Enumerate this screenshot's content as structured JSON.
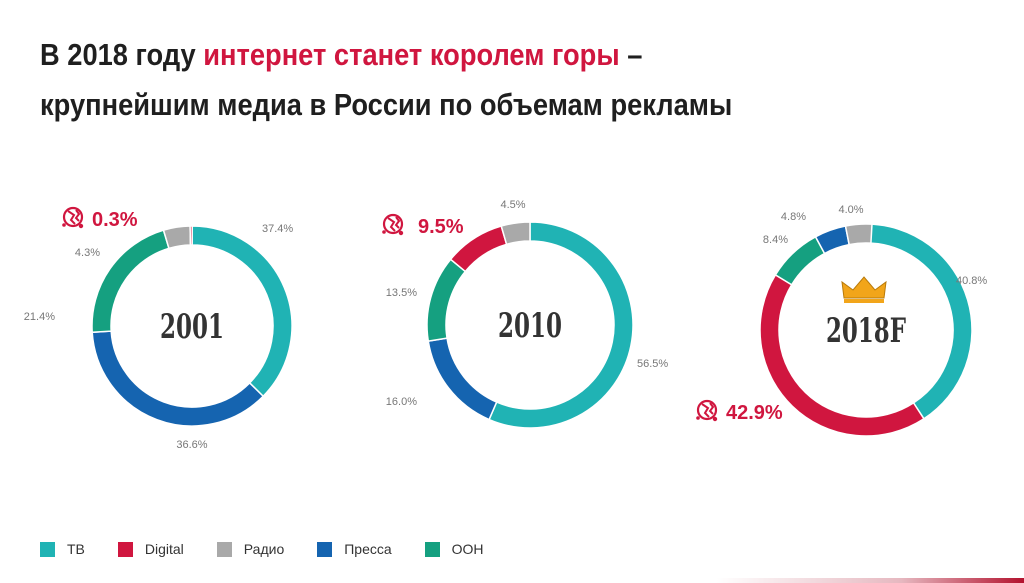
{
  "title": {
    "line1_pre": "В 2018 году ",
    "line1_accent": "интернет станет королем горы",
    "line1_post": " –",
    "line2": "крупнейшим медиа в России по объемам рекламы"
  },
  "colors": {
    "tv": "#20b3b4",
    "digital": "#d0163f",
    "radio": "#a9a9a9",
    "press": "#1564b0",
    "ooh": "#15a080",
    "accent_text": "#d0163f",
    "crown": "#f2a51a"
  },
  "icons": {
    "internet": "globe-icon",
    "crown": "crown-icon"
  },
  "legend": [
    {
      "key": "tv",
      "label": "ТВ"
    },
    {
      "key": "digital",
      "label": "Digital"
    },
    {
      "key": "radio",
      "label": "Радио"
    },
    {
      "key": "press",
      "label": "Пресса"
    },
    {
      "key": "ooh",
      "label": "OOH"
    }
  ],
  "chart_data": [
    {
      "type": "pie",
      "center_label": "2001",
      "highlight_label": "0.3%",
      "slices": [
        {
          "key": "tv",
          "value": 37.4,
          "label": "37.4%"
        },
        {
          "key": "press",
          "value": 36.6,
          "label": "36.6%"
        },
        {
          "key": "ooh",
          "value": 21.4,
          "label": "21.4%"
        },
        {
          "key": "radio",
          "value": 4.3,
          "label": "4.3%"
        },
        {
          "key": "digital",
          "value": 0.3,
          "label": ""
        }
      ]
    },
    {
      "type": "pie",
      "center_label": "2010",
      "highlight_label": "9.5%",
      "slices": [
        {
          "key": "tv",
          "value": 56.5,
          "label": "56.5%"
        },
        {
          "key": "press",
          "value": 16.0,
          "label": "16.0%"
        },
        {
          "key": "ooh",
          "value": 13.5,
          "label": "13.5%"
        },
        {
          "key": "digital",
          "value": 9.5,
          "label": ""
        },
        {
          "key": "radio",
          "value": 4.5,
          "label": "4.5%"
        }
      ]
    },
    {
      "type": "pie",
      "center_label": "2018F",
      "highlight_label": "42.9%",
      "slices": [
        {
          "key": "tv",
          "value": 40.8,
          "label": "40.8%"
        },
        {
          "key": "digital",
          "value": 42.9,
          "label": ""
        },
        {
          "key": "ooh",
          "value": 8.4,
          "label": "8.4%"
        },
        {
          "key": "press",
          "value": 4.8,
          "label": "4.8%"
        },
        {
          "key": "radio",
          "value": 4.0,
          "label": "4.0%"
        }
      ]
    }
  ]
}
